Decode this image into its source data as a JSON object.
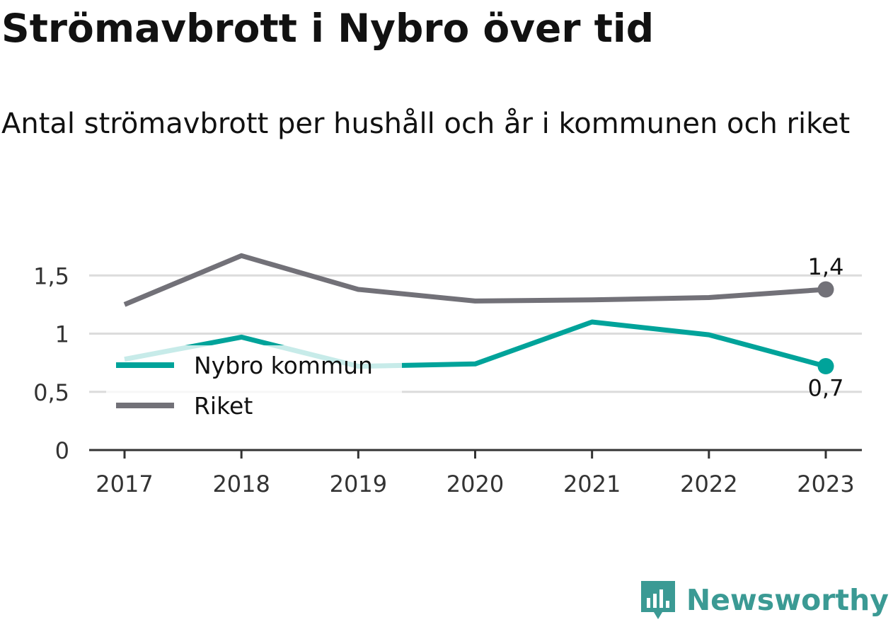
{
  "title": "Strömavbrott i Nybro över tid",
  "subtitle": "Antal strömavbrott per hushåll och år i kommunen och riket",
  "brand": {
    "name": "Newsworthy",
    "color": "#3b9a94",
    "logo_icon": "bar-chart-speech-bubble-icon"
  },
  "chart_data": {
    "type": "line",
    "x": [
      "2017",
      "2018",
      "2019",
      "2020",
      "2021",
      "2022",
      "2023"
    ],
    "series": [
      {
        "name": "Nybro kommun",
        "color": "#00a39a",
        "values": [
          0.78,
          0.97,
          0.72,
          0.74,
          1.1,
          0.99,
          0.72
        ],
        "end_label": "0,7"
      },
      {
        "name": "Riket",
        "color": "#727178",
        "values": [
          1.25,
          1.67,
          1.38,
          1.28,
          1.29,
          1.31,
          1.38
        ],
        "end_label": "1,4"
      }
    ],
    "y_ticks": [
      0,
      0.5,
      1,
      1.5
    ],
    "y_tick_labels": [
      "0",
      "0,5",
      "1",
      "1,5"
    ],
    "ylim": [
      0,
      1.5
    ],
    "grid": true,
    "legend": "bottom-left"
  }
}
